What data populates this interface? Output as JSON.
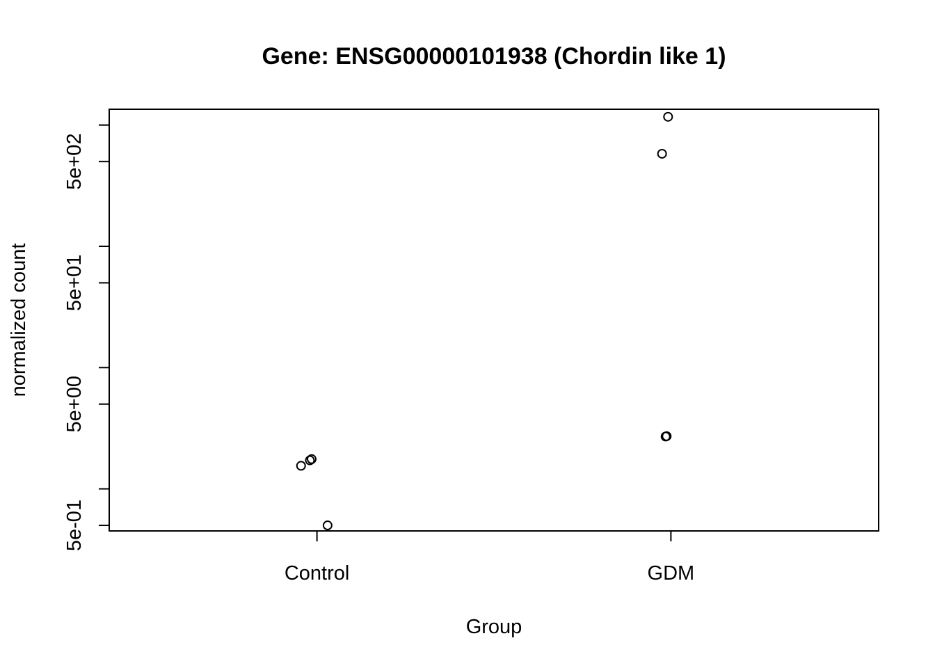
{
  "chart_data": {
    "type": "scatter",
    "title": "Gene: ENSG00000101938 (Chordin like 1)",
    "xlabel": "Group",
    "ylabel": "normalized count",
    "categories": [
      "Control",
      "GDM"
    ],
    "y_scale": "log",
    "ylim": [
      0.45,
      1350
    ],
    "y_ticks": [
      {
        "value": 0.5,
        "label": "5e-01"
      },
      {
        "value": 1,
        "label": ""
      },
      {
        "value": 5,
        "label": "5e+00"
      },
      {
        "value": 10,
        "label": ""
      },
      {
        "value": 50,
        "label": "5e+01"
      },
      {
        "value": 100,
        "label": ""
      },
      {
        "value": 500,
        "label": "5e+02"
      },
      {
        "value": 1000,
        "label": ""
      }
    ],
    "grid": false,
    "legend": "none",
    "points": [
      {
        "group": "Control",
        "jitter": -0.045,
        "y": 1.55
      },
      {
        "group": "Control",
        "jitter": -0.02,
        "y": 1.72
      },
      {
        "group": "Control",
        "jitter": -0.015,
        "y": 1.76
      },
      {
        "group": "Control",
        "jitter": 0.03,
        "y": 0.5
      },
      {
        "group": "GDM",
        "jitter": -0.025,
        "y": 580
      },
      {
        "group": "GDM",
        "jitter": -0.008,
        "y": 1170
      },
      {
        "group": "GDM",
        "jitter": -0.015,
        "y": 2.7
      },
      {
        "group": "GDM",
        "jitter": -0.012,
        "y": 2.72
      }
    ]
  }
}
